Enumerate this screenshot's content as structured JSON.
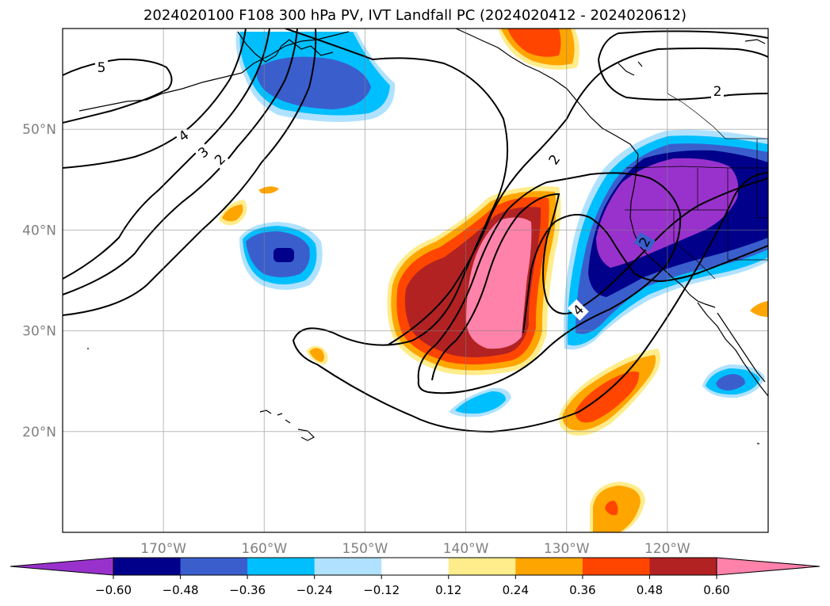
{
  "title": "2024020100 F108 300 hPa PV, IVT Landfall PC (2024020412 - 2024020612)",
  "map": {
    "lon_range": [
      -180,
      -110
    ],
    "lat_range": [
      10,
      60
    ],
    "lat_ticks": [
      {
        "value": 50,
        "label": "50°N"
      },
      {
        "value": 40,
        "label": "40°N"
      },
      {
        "value": 30,
        "label": "30°N"
      },
      {
        "value": 20,
        "label": "20°N"
      }
    ],
    "lon_ticks": [
      {
        "value": -170,
        "label": "170°W"
      },
      {
        "value": -160,
        "label": "160°W"
      },
      {
        "value": -150,
        "label": "150°W"
      },
      {
        "value": -140,
        "label": "140°W"
      },
      {
        "value": -130,
        "label": "130°W"
      },
      {
        "value": -120,
        "label": "120°W"
      }
    ],
    "grid": true
  },
  "pv_contour_labels": [
    {
      "text": "5"
    },
    {
      "text": "4"
    },
    {
      "text": "3"
    },
    {
      "text": "2"
    },
    {
      "text": "2"
    },
    {
      "text": "2"
    },
    {
      "text": "4"
    },
    {
      "text": "2"
    }
  ],
  "colorbar": {
    "orientation": "horizontal",
    "extend": "both",
    "levels": [
      "−0.60",
      "−0.48",
      "−0.36",
      "−0.24",
      "−0.12",
      "0.12",
      "0.24",
      "0.36",
      "0.48",
      "0.60"
    ],
    "colors": [
      "#9932CC",
      "#00008B",
      "#3A5FCD",
      "#00BFFF",
      "#B0E2FF",
      "#FFFFFF",
      "#FFEC8B",
      "#FFA500",
      "#FF4500",
      "#B22222",
      "#FF82AB"
    ]
  }
}
